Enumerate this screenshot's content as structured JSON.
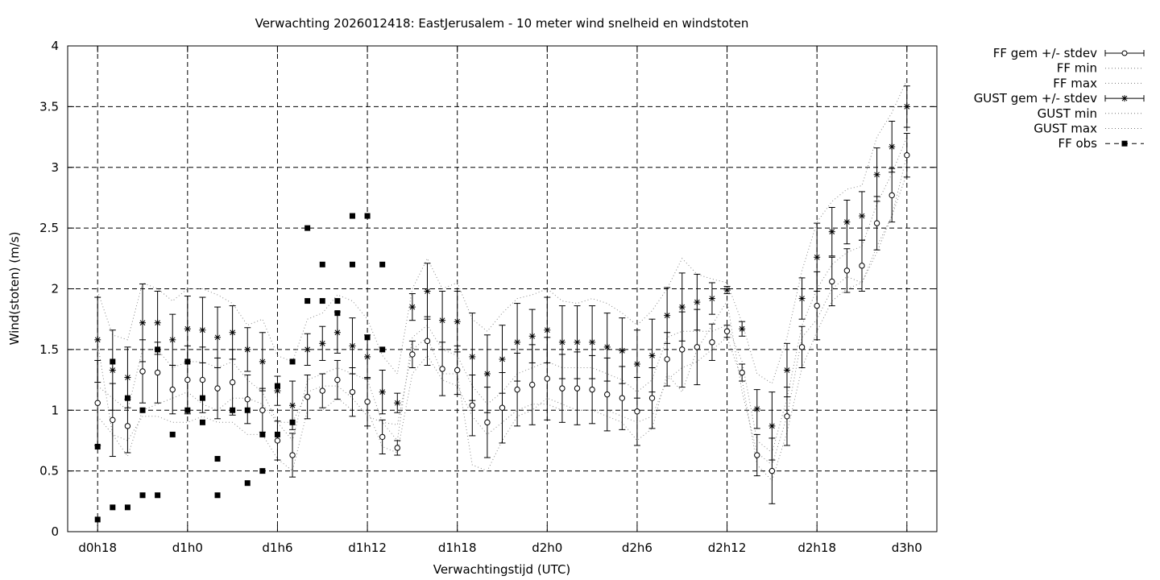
{
  "chart_data": {
    "type": "line",
    "title": "Verwachting 2026012418: EastJerusalem - 10 meter wind snelheid en windstoten",
    "xlabel": "Verwachtingstijd (UTC)",
    "ylabel": "Wind(stoten) (m/s)",
    "x_unit": "hours since d0h0",
    "xlim": [
      16,
      74
    ],
    "ylim": [
      0,
      4
    ],
    "x_ticks": [
      {
        "value": 18,
        "label": "d0h18"
      },
      {
        "value": 24,
        "label": "d1h0"
      },
      {
        "value": 30,
        "label": "d1h6"
      },
      {
        "value": 36,
        "label": "d1h12"
      },
      {
        "value": 42,
        "label": "d1h18"
      },
      {
        "value": 48,
        "label": "d2h0"
      },
      {
        "value": 54,
        "label": "d2h6"
      },
      {
        "value": 60,
        "label": "d2h12"
      },
      {
        "value": 66,
        "label": "d2h18"
      },
      {
        "value": 72,
        "label": "d3h0"
      }
    ],
    "y_ticks": [
      {
        "value": 0,
        "label": "0"
      },
      {
        "value": 0.5,
        "label": "0.5"
      },
      {
        "value": 1,
        "label": "1"
      },
      {
        "value": 1.5,
        "label": "1.5"
      },
      {
        "value": 2,
        "label": "2"
      },
      {
        "value": 2.5,
        "label": "2.5"
      },
      {
        "value": 3,
        "label": "3"
      },
      {
        "value": 3.5,
        "label": "3.5"
      },
      {
        "value": 4,
        "label": "4"
      }
    ],
    "grid": true,
    "legend_position": "outside-right",
    "legend": [
      {
        "key": "ff_mean",
        "label": "FF gem +/- stdev"
      },
      {
        "key": "ff_min",
        "label": "FF min"
      },
      {
        "key": "ff_max",
        "label": "FF max"
      },
      {
        "key": "gust_mean",
        "label": "GUST gem +/- stdev"
      },
      {
        "key": "gust_min",
        "label": "GUST min"
      },
      {
        "key": "gust_max",
        "label": "GUST max"
      },
      {
        "key": "ff_obs",
        "label": "FF obs"
      }
    ],
    "x": [
      18,
      19,
      20,
      21,
      22,
      23,
      24,
      25,
      26,
      27,
      28,
      29,
      30,
      31,
      32,
      33,
      34,
      35,
      36,
      37,
      38,
      39,
      40,
      41,
      42,
      43,
      44,
      45,
      46,
      47,
      48,
      49,
      50,
      51,
      52,
      53,
      54,
      55,
      56,
      57,
      58,
      59,
      60,
      61,
      62,
      63,
      64,
      65,
      66,
      67,
      68,
      69,
      70,
      71,
      72
    ],
    "ff_mean": [
      1.06,
      0.92,
      0.87,
      1.32,
      1.31,
      1.17,
      1.25,
      1.25,
      1.18,
      1.23,
      1.09,
      1.0,
      0.75,
      0.63,
      1.11,
      1.16,
      1.25,
      1.15,
      1.07,
      0.78,
      0.69,
      1.46,
      1.57,
      1.34,
      1.33,
      1.04,
      0.9,
      1.02,
      1.17,
      1.21,
      1.26,
      1.18,
      1.18,
      1.17,
      1.13,
      1.1,
      0.99,
      1.1,
      1.42,
      1.5,
      1.52,
      1.56,
      1.65,
      1.31,
      0.63,
      0.5,
      0.95,
      1.52,
      1.86,
      2.06,
      2.15,
      2.19,
      2.54,
      2.77,
      3.1
    ],
    "ff_stdev": [
      0.35,
      0.3,
      0.22,
      0.26,
      0.25,
      0.2,
      0.28,
      0.27,
      0.25,
      0.27,
      0.2,
      0.18,
      0.16,
      0.18,
      0.18,
      0.14,
      0.16,
      0.2,
      0.2,
      0.14,
      0.06,
      0.11,
      0.2,
      0.22,
      0.2,
      0.25,
      0.29,
      0.29,
      0.3,
      0.33,
      0.34,
      0.28,
      0.3,
      0.28,
      0.3,
      0.26,
      0.28,
      0.25,
      0.22,
      0.31,
      0.31,
      0.15,
      0.05,
      0.07,
      0.17,
      0.27,
      0.24,
      0.17,
      0.28,
      0.2,
      0.18,
      0.21,
      0.22,
      0.22,
      0.18
    ],
    "ff_min": [
      0.95,
      0.8,
      0.75,
      0.95,
      0.95,
      0.9,
      0.9,
      0.95,
      0.9,
      0.9,
      0.8,
      0.8,
      0.6,
      0.5,
      1.0,
      1.0,
      1.1,
      1.0,
      1.0,
      0.7,
      0.65,
      1.3,
      1.45,
      1.25,
      1.2,
      0.95,
      0.8,
      0.9,
      1.0,
      1.05,
      1.05,
      1.0,
      1.0,
      1.0,
      1.0,
      0.95,
      0.9,
      0.95,
      1.25,
      1.35,
      1.4,
      1.5,
      1.6,
      1.25,
      0.55,
      0.42,
      0.82,
      1.35,
      1.65,
      1.9,
      2.0,
      2.05,
      2.35,
      2.6,
      2.95
    ],
    "ff_max": [
      1.2,
      1.1,
      1.0,
      1.5,
      1.5,
      1.35,
      1.4,
      1.4,
      1.35,
      1.4,
      1.25,
      1.15,
      0.9,
      0.75,
      1.25,
      1.3,
      1.35,
      1.3,
      1.25,
      0.9,
      0.75,
      1.6,
      1.7,
      1.5,
      1.45,
      1.2,
      1.05,
      1.15,
      1.3,
      1.35,
      1.4,
      1.35,
      1.35,
      1.35,
      1.3,
      1.25,
      1.15,
      1.25,
      1.6,
      1.65,
      1.65,
      1.65,
      1.7,
      1.4,
      0.75,
      0.65,
      1.1,
      1.7,
      2.0,
      2.2,
      2.3,
      2.35,
      2.7,
      2.95,
      3.25
    ],
    "gust_mean": [
      1.58,
      1.33,
      1.27,
      1.72,
      1.72,
      1.58,
      1.67,
      1.66,
      1.6,
      1.64,
      1.5,
      1.4,
      1.16,
      1.04,
      1.5,
      1.55,
      1.64,
      1.53,
      1.44,
      1.15,
      1.06,
      1.85,
      1.98,
      1.74,
      1.73,
      1.44,
      1.3,
      1.42,
      1.56,
      1.61,
      1.66,
      1.56,
      1.56,
      1.56,
      1.52,
      1.49,
      1.38,
      1.45,
      1.78,
      1.85,
      1.89,
      1.92,
      1.99,
      1.67,
      1.01,
      0.87,
      1.33,
      1.92,
      2.26,
      2.47,
      2.55,
      2.6,
      2.94,
      3.17,
      3.5
    ],
    "gust_stdev": [
      0.35,
      0.33,
      0.25,
      0.32,
      0.26,
      0.21,
      0.27,
      0.27,
      0.25,
      0.22,
      0.18,
      0.24,
      0.12,
      0.2,
      0.13,
      0.14,
      0.17,
      0.23,
      0.18,
      0.18,
      0.08,
      0.11,
      0.23,
      0.24,
      0.25,
      0.36,
      0.32,
      0.28,
      0.32,
      0.22,
      0.27,
      0.3,
      0.3,
      0.3,
      0.28,
      0.27,
      0.28,
      0.3,
      0.23,
      0.28,
      0.23,
      0.13,
      0.03,
      0.06,
      0.16,
      0.28,
      0.22,
      0.17,
      0.28,
      0.2,
      0.18,
      0.2,
      0.22,
      0.21,
      0.17
    ],
    "gust_min": [
      1.55,
      0.8,
      0.62,
      1.0,
      1.05,
      1.1,
      1.15,
      1.05,
      1.0,
      1.1,
      1.1,
      1.05,
      0.9,
      0.9,
      1.15,
      1.2,
      1.2,
      1.1,
      0.95,
      0.9,
      0.88,
      1.5,
      1.6,
      1.3,
      1.3,
      0.55,
      0.5,
      0.75,
      0.95,
      1.0,
      1.1,
      1.05,
      1.0,
      1.0,
      0.95,
      0.9,
      0.75,
      0.85,
      1.3,
      1.15,
      1.5,
      1.7,
      1.9,
      1.15,
      0.65,
      0.55,
      0.95,
      1.6,
      1.75,
      2.0,
      2.1,
      2.05,
      2.3,
      2.6,
      3.1
    ],
    "gust_max": [
      1.98,
      1.62,
      1.58,
      2.05,
      2.0,
      1.9,
      2.0,
      2.0,
      1.95,
      1.88,
      1.7,
      1.75,
      1.45,
      1.4,
      1.75,
      1.8,
      1.95,
      1.9,
      1.75,
      1.45,
      1.3,
      2.0,
      2.25,
      2.0,
      2.05,
      1.75,
      1.65,
      1.8,
      1.92,
      1.95,
      2.0,
      1.9,
      1.88,
      1.92,
      1.88,
      1.8,
      1.7,
      1.82,
      2.0,
      2.25,
      2.12,
      2.08,
      2.05,
      1.72,
      1.3,
      1.22,
      1.6,
      2.15,
      2.55,
      2.72,
      2.82,
      2.85,
      3.25,
      3.45,
      3.72
    ],
    "ff_obs": [
      {
        "x": 18,
        "y": 0.7
      },
      {
        "x": 18,
        "y": 0.1
      },
      {
        "x": 19,
        "y": 1.4
      },
      {
        "x": 19,
        "y": 0.2
      },
      {
        "x": 20,
        "y": 1.1
      },
      {
        "x": 20,
        "y": 0.2
      },
      {
        "x": 21,
        "y": 1.0
      },
      {
        "x": 21,
        "y": 0.3
      },
      {
        "x": 22,
        "y": 1.5
      },
      {
        "x": 22,
        "y": 0.3
      },
      {
        "x": 23,
        "y": 0.8
      },
      {
        "x": 24,
        "y": 1.4
      },
      {
        "x": 24,
        "y": 1.0
      },
      {
        "x": 25,
        "y": 1.1
      },
      {
        "x": 25,
        "y": 0.9
      },
      {
        "x": 26,
        "y": 0.6
      },
      {
        "x": 26,
        "y": 0.3
      },
      {
        "x": 27,
        "y": 1.0
      },
      {
        "x": 28,
        "y": 1.0
      },
      {
        "x": 28,
        "y": 0.4
      },
      {
        "x": 29,
        "y": 0.8
      },
      {
        "x": 29,
        "y": 0.5
      },
      {
        "x": 30,
        "y": 1.2
      },
      {
        "x": 30,
        "y": 0.8
      },
      {
        "x": 31,
        "y": 1.4
      },
      {
        "x": 31,
        "y": 0.9
      },
      {
        "x": 32,
        "y": 2.5
      },
      {
        "x": 32,
        "y": 1.9
      },
      {
        "x": 33,
        "y": 2.2
      },
      {
        "x": 33,
        "y": 1.9
      },
      {
        "x": 34,
        "y": 1.9
      },
      {
        "x": 34,
        "y": 1.8
      },
      {
        "x": 35,
        "y": 2.6
      },
      {
        "x": 35,
        "y": 2.2
      },
      {
        "x": 36,
        "y": 2.6
      },
      {
        "x": 36,
        "y": 1.6
      },
      {
        "x": 37,
        "y": 2.2
      },
      {
        "x": 37,
        "y": 1.5
      }
    ]
  }
}
